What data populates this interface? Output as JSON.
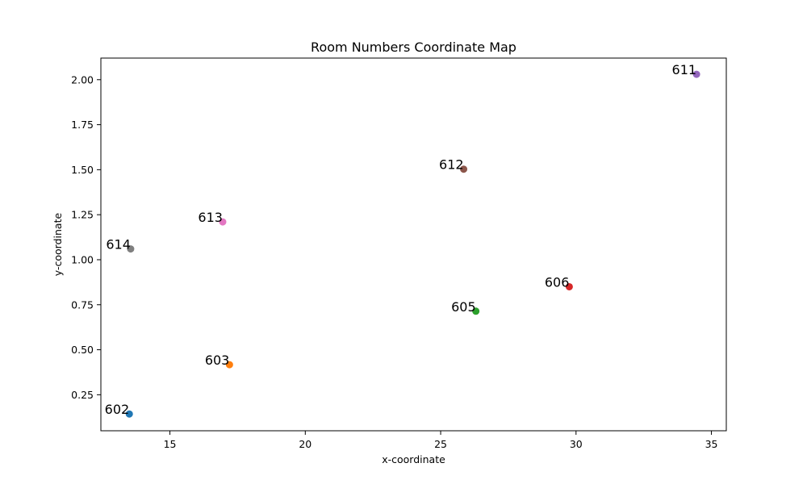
{
  "chart_data": {
    "type": "scatter",
    "title": "Room Numbers Coordinate Map",
    "xlabel": "x-coordinate",
    "ylabel": "y-coordinate",
    "xlim": [
      12.45,
      35.55
    ],
    "ylim": [
      0.05,
      2.12
    ],
    "xticks": [
      15,
      20,
      25,
      30,
      35
    ],
    "yticks": [
      0.25,
      0.5,
      0.75,
      1.0,
      1.25,
      1.5,
      1.75,
      2.0
    ],
    "ytick_labels": [
      "0.25",
      "0.50",
      "0.75",
      "1.00",
      "1.25",
      "1.50",
      "1.75",
      "2.00"
    ],
    "grid": false,
    "points": [
      {
        "label": "602",
        "x": 13.5,
        "y": 0.143,
        "color": "#1f77b4"
      },
      {
        "label": "603",
        "x": 17.2,
        "y": 0.417,
        "color": "#ff7f0e"
      },
      {
        "label": "605",
        "x": 26.3,
        "y": 0.714,
        "color": "#2ca02c"
      },
      {
        "label": "606",
        "x": 29.75,
        "y": 0.85,
        "color": "#d62728"
      },
      {
        "label": "611",
        "x": 34.45,
        "y": 2.03,
        "color": "#9467bd"
      },
      {
        "label": "612",
        "x": 25.85,
        "y": 1.503,
        "color": "#8c564b"
      },
      {
        "label": "613",
        "x": 16.95,
        "y": 1.21,
        "color": "#e377c2"
      },
      {
        "label": "614",
        "x": 13.55,
        "y": 1.06,
        "color": "#7f7f7f"
      }
    ]
  }
}
